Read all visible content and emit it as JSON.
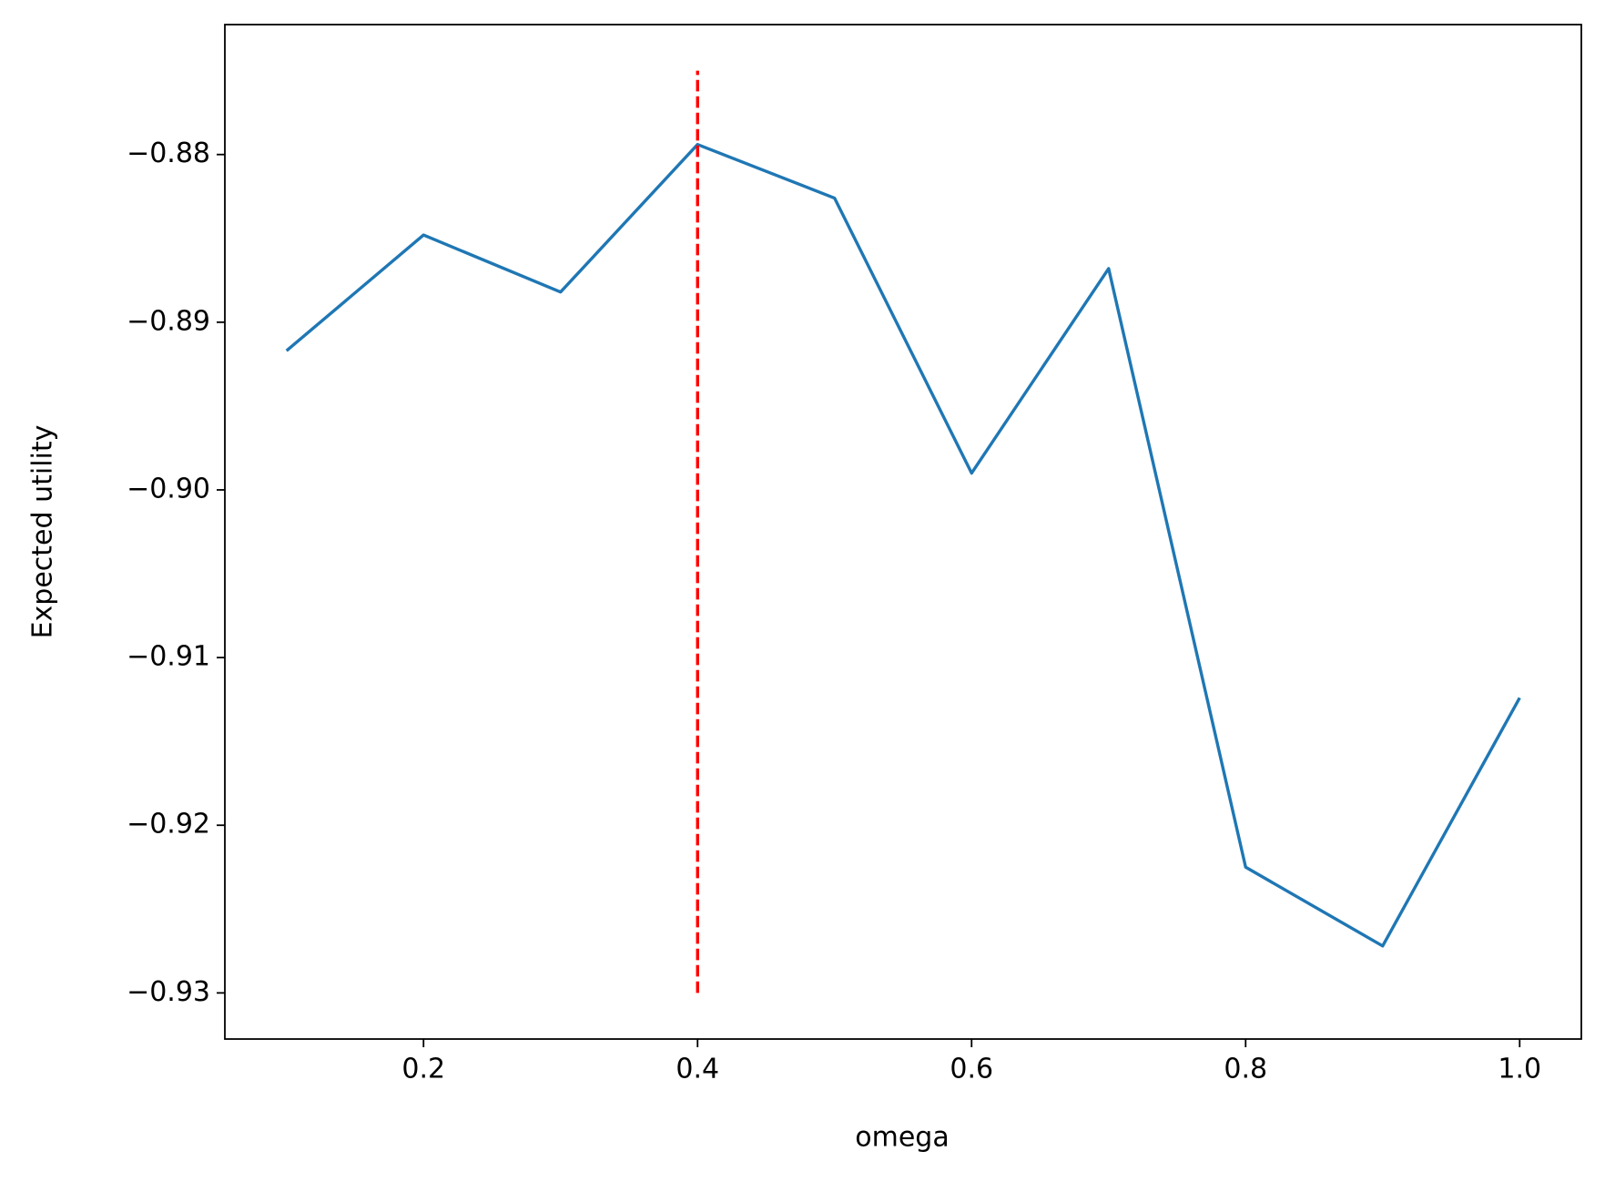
{
  "chart_data": {
    "type": "line",
    "xlabel": "omega",
    "ylabel": "Expected utility",
    "x": [
      0.1,
      0.2,
      0.3,
      0.4,
      0.5,
      0.6,
      0.7,
      0.8,
      0.9,
      1.0
    ],
    "series": [
      {
        "color": "#1f77b4",
        "values": [
          -0.8917,
          -0.8848,
          -0.8882,
          -0.8794,
          -0.8826,
          -0.899,
          -0.8868,
          -0.9225,
          -0.9272,
          -0.9124
        ]
      }
    ],
    "vline": {
      "x": 0.4,
      "ymin": -0.93,
      "ymax": -0.875,
      "color": "#ff0000",
      "style": "dashed"
    },
    "xlim": [
      0.055,
      1.045
    ],
    "ylim": [
      -0.93275,
      -0.87225
    ],
    "xticks": [
      0.2,
      0.4,
      0.6,
      0.8,
      {
        "value": 1.0,
        "label": "1.0"
      }
    ],
    "yticks": [
      {
        "value": -0.93,
        "label": "−0.93"
      },
      {
        "value": -0.92,
        "label": "−0.92"
      },
      {
        "value": -0.91,
        "label": "−0.91"
      },
      {
        "value": -0.9,
        "label": "−0.90"
      },
      {
        "value": -0.89,
        "label": "−0.89"
      },
      {
        "value": -0.88,
        "label": "−0.88"
      }
    ],
    "grid": false
  }
}
